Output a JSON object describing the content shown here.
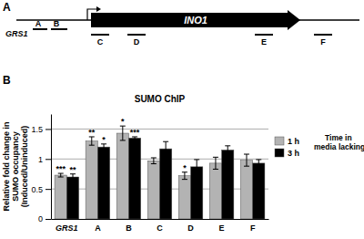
{
  "panel_labels": [
    "A",
    "B"
  ],
  "diagram": {
    "gene": "INO1",
    "neighbor": "GRS1",
    "regions": [
      "A",
      "B",
      "C",
      "D",
      "E",
      "F"
    ]
  },
  "chart_data": {
    "type": "bar",
    "title": "SUMO ChIP",
    "y_label": [
      "Relative fold change in",
      "SUMO occupancy",
      "(Induced/Uninduced)"
    ],
    "categories": [
      "GRS1",
      "A",
      "B",
      "C",
      "D",
      "E",
      "F"
    ],
    "series": [
      {
        "name": "1 h",
        "color": "#b3b3b3",
        "values": [
          0.73,
          1.3,
          1.43,
          0.97,
          0.72,
          0.93,
          0.98
        ],
        "errors": [
          0.03,
          0.07,
          0.12,
          0.05,
          0.06,
          0.1,
          0.1
        ],
        "significance": [
          "***",
          "**",
          "*",
          null,
          "*",
          null,
          null
        ]
      },
      {
        "name": "3 h",
        "color": "#000000",
        "values": [
          0.7,
          1.2,
          1.35,
          1.17,
          0.87,
          1.15,
          0.93
        ],
        "errors": [
          0.05,
          0.05,
          0.02,
          0.12,
          0.12,
          0.07,
          0.06
        ],
        "significance": [
          "**",
          "*",
          "***",
          null,
          null,
          null,
          null
        ]
      }
    ],
    "legend_title": [
      "Time in",
      "media lacking inositol"
    ],
    "legend": "right",
    "ylim": [
      0,
      1.75
    ],
    "yticks": [
      0,
      0.5,
      1,
      1.5
    ],
    "grid": true
  }
}
